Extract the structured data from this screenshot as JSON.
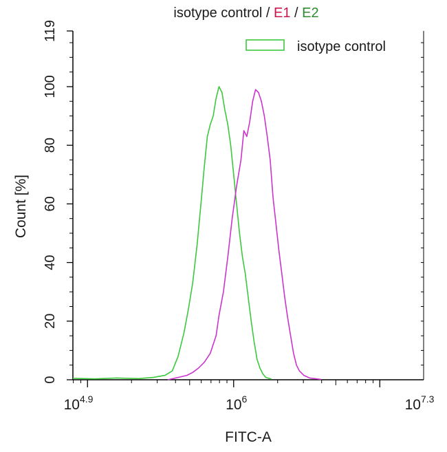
{
  "chart_data": {
    "type": "line",
    "title_parts": [
      {
        "text": "isotype control",
        "color": "#1a1a1a"
      },
      {
        "text": " / ",
        "color": "#1a1a1a"
      },
      {
        "text": "E1",
        "color": "#c8154a"
      },
      {
        "text": " / ",
        "color": "#1a1a1a"
      },
      {
        "text": "E2",
        "color": "#2e8b2e"
      }
    ],
    "xlabel": "FITC-A",
    "ylabel": "Count  [%]",
    "x_log10_range": [
      4.9,
      7.3
    ],
    "ylim": [
      0,
      119
    ],
    "y_ticks": [
      0,
      20,
      40,
      60,
      80,
      100,
      119
    ],
    "x_ticks": [
      {
        "exp": 4.9,
        "base": "10",
        "sup": "4.9"
      },
      {
        "exp": 6.0,
        "base": "10",
        "sup": "6"
      },
      {
        "exp": 7.3,
        "base": "10",
        "sup": "7.3"
      }
    ],
    "legend": {
      "placement": "top-right",
      "entries": [
        {
          "label": "isotype control",
          "color": "#3cc83c"
        }
      ]
    },
    "series": [
      {
        "name": "isotype control",
        "color": "#3cc83c",
        "points": [
          [
            4.9,
            0.5
          ],
          [
            5.05,
            0.3
          ],
          [
            5.2,
            0.6
          ],
          [
            5.35,
            0.4
          ],
          [
            5.45,
            0.8
          ],
          [
            5.53,
            1.5
          ],
          [
            5.58,
            3
          ],
          [
            5.62,
            8
          ],
          [
            5.66,
            16
          ],
          [
            5.69,
            24
          ],
          [
            5.72,
            33
          ],
          [
            5.75,
            46
          ],
          [
            5.78,
            62
          ],
          [
            5.8,
            73
          ],
          [
            5.82,
            83
          ],
          [
            5.84,
            87
          ],
          [
            5.86,
            90
          ],
          [
            5.88,
            96
          ],
          [
            5.9,
            100
          ],
          [
            5.92,
            98
          ],
          [
            5.94,
            92
          ],
          [
            5.96,
            87
          ],
          [
            5.98,
            80
          ],
          [
            6.0,
            70
          ],
          [
            6.02,
            60
          ],
          [
            6.04,
            50
          ],
          [
            6.06,
            42
          ],
          [
            6.08,
            36
          ],
          [
            6.1,
            28
          ],
          [
            6.12,
            20
          ],
          [
            6.14,
            13
          ],
          [
            6.16,
            7
          ],
          [
            6.18,
            4
          ],
          [
            6.2,
            2
          ],
          [
            6.22,
            0.8
          ],
          [
            6.26,
            0.2
          ]
        ]
      },
      {
        "name": "",
        "color": "#cc33cc",
        "points": [
          [
            5.55,
            0
          ],
          [
            5.62,
            0.8
          ],
          [
            5.68,
            1.5
          ],
          [
            5.72,
            2.5
          ],
          [
            5.76,
            4
          ],
          [
            5.8,
            6
          ],
          [
            5.84,
            9
          ],
          [
            5.88,
            15
          ],
          [
            5.9,
            22
          ],
          [
            5.93,
            30
          ],
          [
            5.96,
            42
          ],
          [
            5.99,
            55
          ],
          [
            6.02,
            66
          ],
          [
            6.05,
            75
          ],
          [
            6.07,
            85
          ],
          [
            6.09,
            83
          ],
          [
            6.11,
            88
          ],
          [
            6.13,
            95
          ],
          [
            6.15,
            99
          ],
          [
            6.17,
            98
          ],
          [
            6.19,
            95
          ],
          [
            6.21,
            90
          ],
          [
            6.23,
            83
          ],
          [
            6.25,
            75
          ],
          [
            6.27,
            62
          ],
          [
            6.29,
            53
          ],
          [
            6.31,
            44
          ],
          [
            6.33,
            36
          ],
          [
            6.35,
            28
          ],
          [
            6.37,
            21
          ],
          [
            6.39,
            15
          ],
          [
            6.41,
            9
          ],
          [
            6.43,
            5
          ],
          [
            6.45,
            3
          ],
          [
            6.48,
            1.5
          ],
          [
            6.52,
            0.6
          ],
          [
            6.6,
            0.1
          ]
        ]
      }
    ]
  }
}
